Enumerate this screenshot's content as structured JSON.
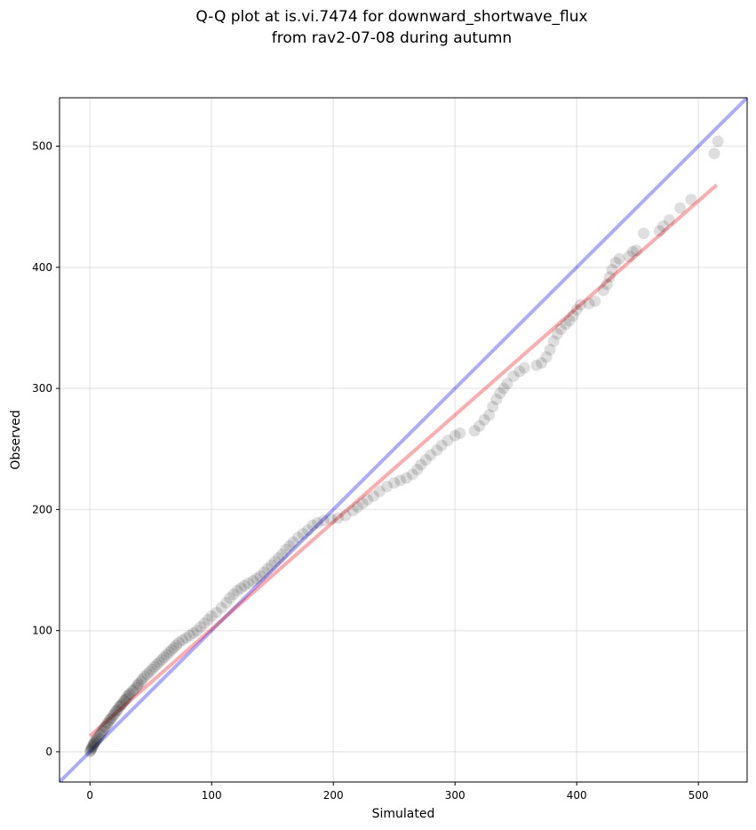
{
  "chart_data": {
    "type": "scatter",
    "title_line1": "Q-Q plot at is.vi.7474 for downward_shortwave_flux",
    "title_line2": "from rav2-07-08 during autumn",
    "xlabel": "Simulated",
    "ylabel": "Observed",
    "xlim": [
      -25,
      540
    ],
    "ylim": [
      -25,
      540
    ],
    "x_ticks": [
      0,
      100,
      200,
      300,
      400,
      500
    ],
    "y_ticks": [
      0,
      100,
      200,
      300,
      400,
      500
    ],
    "x_tick_labels": [
      "0",
      "100",
      "200",
      "300",
      "400",
      "500"
    ],
    "y_tick_labels": [
      "0",
      "100",
      "200",
      "300",
      "400",
      "500"
    ],
    "grid": true,
    "identity_line": {
      "color": "#0000ff",
      "from": [
        -25,
        -25
      ],
      "to": [
        540,
        540
      ]
    },
    "fit_line": {
      "color": "#ff0000",
      "from": [
        0,
        13
      ],
      "to": [
        515,
        468
      ]
    },
    "points": [
      [
        0,
        0
      ],
      [
        0.5,
        1
      ],
      [
        1,
        2
      ],
      [
        1.5,
        3
      ],
      [
        2,
        4
      ],
      [
        2.5,
        5
      ],
      [
        3,
        6
      ],
      [
        3.5,
        7
      ],
      [
        4,
        8
      ],
      [
        5,
        9
      ],
      [
        5.5,
        10
      ],
      [
        6,
        11
      ],
      [
        7,
        12
      ],
      [
        8,
        14
      ],
      [
        9,
        15
      ],
      [
        10,
        17
      ],
      [
        11,
        18
      ],
      [
        12,
        20
      ],
      [
        13,
        21
      ],
      [
        14,
        23
      ],
      [
        15,
        24
      ],
      [
        16,
        26
      ],
      [
        17,
        27
      ],
      [
        18,
        28
      ],
      [
        19,
        30
      ],
      [
        20,
        31
      ],
      [
        21,
        33
      ],
      [
        22,
        34
      ],
      [
        23,
        35
      ],
      [
        24,
        37
      ],
      [
        25,
        38
      ],
      [
        26,
        39
      ],
      [
        27,
        40
      ],
      [
        28,
        42
      ],
      [
        29,
        43
      ],
      [
        30,
        44
      ],
      [
        31,
        46
      ],
      [
        32,
        47
      ],
      [
        33,
        48
      ],
      [
        35,
        50
      ],
      [
        36,
        51
      ],
      [
        38,
        53
      ],
      [
        39,
        55
      ],
      [
        40,
        56
      ],
      [
        42,
        58
      ],
      [
        43,
        60
      ],
      [
        45,
        62
      ],
      [
        47,
        64
      ],
      [
        49,
        66
      ],
      [
        51,
        68
      ],
      [
        53,
        70
      ],
      [
        55,
        72
      ],
      [
        57,
        74
      ],
      [
        59,
        76
      ],
      [
        61,
        78
      ],
      [
        63,
        80
      ],
      [
        65,
        82
      ],
      [
        67,
        84
      ],
      [
        69,
        86
      ],
      [
        71,
        88
      ],
      [
        73,
        90
      ],
      [
        76,
        92
      ],
      [
        79,
        94
      ],
      [
        82,
        96
      ],
      [
        85,
        98
      ],
      [
        88,
        100
      ],
      [
        91,
        103
      ],
      [
        94,
        106
      ],
      [
        97,
        109
      ],
      [
        100,
        112
      ],
      [
        104,
        115
      ],
      [
        108,
        119
      ],
      [
        112,
        123
      ],
      [
        115,
        127
      ],
      [
        118,
        130
      ],
      [
        121,
        133
      ],
      [
        124,
        135
      ],
      [
        127,
        137
      ],
      [
        130,
        139
      ],
      [
        134,
        141
      ],
      [
        137,
        143
      ],
      [
        140,
        145
      ],
      [
        143,
        148
      ],
      [
        146,
        151
      ],
      [
        149,
        154
      ],
      [
        152,
        157
      ],
      [
        155,
        160
      ],
      [
        158,
        163
      ],
      [
        161,
        167
      ],
      [
        164,
        170
      ],
      [
        167,
        173
      ],
      [
        171,
        177
      ],
      [
        175,
        180
      ],
      [
        179,
        183
      ],
      [
        183,
        187
      ],
      [
        187,
        189
      ],
      [
        192,
        191
      ],
      [
        198,
        192
      ],
      [
        204,
        193
      ],
      [
        210,
        195
      ],
      [
        216,
        199
      ],
      [
        220,
        202
      ],
      [
        224,
        205
      ],
      [
        228,
        208
      ],
      [
        233,
        211
      ],
      [
        238,
        215
      ],
      [
        244,
        219
      ],
      [
        250,
        222
      ],
      [
        255,
        224
      ],
      [
        260,
        226
      ],
      [
        265,
        229
      ],
      [
        269,
        233
      ],
      [
        272,
        237
      ],
      [
        276,
        241
      ],
      [
        280,
        245
      ],
      [
        285,
        249
      ],
      [
        289,
        253
      ],
      [
        294,
        257
      ],
      [
        300,
        261
      ],
      [
        304,
        263
      ],
      [
        316,
        265
      ],
      [
        320,
        269
      ],
      [
        324,
        274
      ],
      [
        328,
        278
      ],
      [
        331,
        285
      ],
      [
        334,
        291
      ],
      [
        337,
        296
      ],
      [
        340,
        300
      ],
      [
        343,
        304
      ],
      [
        348,
        310
      ],
      [
        353,
        314
      ],
      [
        357,
        317
      ],
      [
        367,
        319
      ],
      [
        371,
        321
      ],
      [
        375,
        326
      ],
      [
        378,
        332
      ],
      [
        381,
        339
      ],
      [
        384,
        345
      ],
      [
        387,
        349
      ],
      [
        391,
        353
      ],
      [
        394,
        356
      ],
      [
        397,
        360
      ],
      [
        400,
        365
      ],
      [
        403,
        369
      ],
      [
        410,
        370
      ],
      [
        415,
        372
      ],
      [
        422,
        381
      ],
      [
        425,
        386
      ],
      [
        427,
        392
      ],
      [
        429,
        398
      ],
      [
        432,
        404
      ],
      [
        435,
        407
      ],
      [
        443,
        409
      ],
      [
        446,
        413
      ],
      [
        449,
        414
      ],
      [
        455,
        428
      ],
      [
        468,
        430
      ],
      [
        471,
        434
      ],
      [
        476,
        439
      ],
      [
        485,
        449
      ],
      [
        494,
        456
      ],
      [
        513,
        494
      ],
      [
        516,
        504
      ]
    ]
  }
}
